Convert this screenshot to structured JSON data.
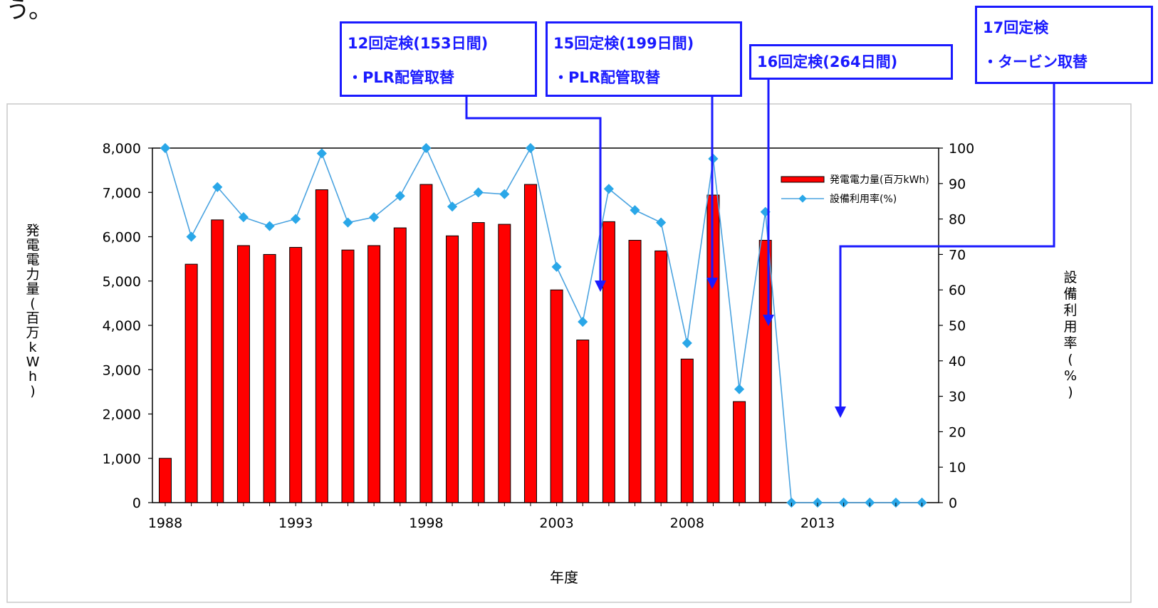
{
  "page": {
    "top_fragment": "う。"
  },
  "colors": {
    "bar": "#ff0000",
    "bar_edge": "#000000",
    "line": "#4aa3e0",
    "marker": "#2aa7e8",
    "callout": "#1a1aff"
  },
  "callouts": [
    {
      "line1": "12回定検(153日間)",
      "line2": "・PLR配管取替"
    },
    {
      "line1": "15回定検(199日間)",
      "line2": "・PLR配管取替"
    },
    {
      "line1": "16回定検(264日間)",
      "line2": ""
    },
    {
      "line1": "17回定検",
      "line2": "・タービン取替"
    }
  ],
  "chart_data": {
    "type": "bar",
    "xlabel": "年度",
    "ylabel": "発電電力量(百万kWh)",
    "ylabel_chars": [
      "発",
      "電",
      "電",
      "力",
      "量",
      "(",
      "百",
      "万",
      "k",
      "W",
      "h",
      ")"
    ],
    "y2label": "設備利用率(%)",
    "y2label_chars": [
      "設",
      "備",
      "利",
      "用",
      "率",
      "(",
      "%",
      ")"
    ],
    "ylim": [
      0,
      8000
    ],
    "y2lim": [
      0,
      100
    ],
    "x_tick_labels": [
      "1988",
      "1993",
      "1998",
      "2003",
      "2008",
      "2013"
    ],
    "y_tick_labels": [
      "0",
      "1,000",
      "2,000",
      "3,000",
      "4,000",
      "5,000",
      "6,000",
      "7,000",
      "8,000"
    ],
    "y2_tick_labels": [
      "0",
      "10",
      "20",
      "30",
      "40",
      "50",
      "60",
      "70",
      "80",
      "90",
      "100"
    ],
    "legend_position": "top-right",
    "x": [
      1988,
      1989,
      1990,
      1991,
      1992,
      1993,
      1994,
      1995,
      1996,
      1997,
      1998,
      1999,
      2000,
      2001,
      2002,
      2003,
      2004,
      2005,
      2006,
      2007,
      2008,
      2009,
      2010,
      2011,
      2012,
      2013,
      2014,
      2015,
      2016,
      2017
    ],
    "series": [
      {
        "name": "発電電力量(百万kWh)",
        "type": "bar",
        "axis": "left",
        "values": [
          1000,
          5380,
          6380,
          5800,
          5600,
          5760,
          7060,
          5700,
          5800,
          6200,
          7180,
          6020,
          6320,
          6280,
          7180,
          4800,
          3670,
          6340,
          5920,
          5680,
          3240,
          6940,
          2280,
          5920,
          null,
          null,
          null,
          null,
          null,
          null
        ]
      },
      {
        "name": "設備利用率(%)",
        "type": "line",
        "axis": "right",
        "values": [
          100,
          75,
          89,
          80.5,
          78,
          80,
          98.5,
          79,
          80.5,
          86.5,
          100,
          83.5,
          87.5,
          87,
          100,
          66.5,
          51,
          88.5,
          82.5,
          79,
          45,
          97,
          32,
          82,
          0,
          0,
          0,
          0,
          0,
          0
        ]
      }
    ]
  }
}
